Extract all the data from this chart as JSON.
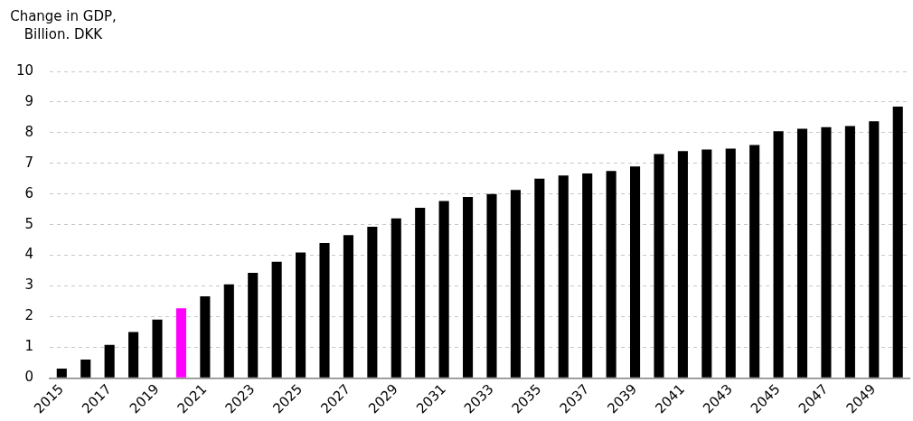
{
  "chart_data": {
    "type": "bar",
    "ylabel": "Change in GDP, Billion. DKK",
    "categories": [
      "2015",
      null,
      "2017",
      null,
      "2019",
      null,
      "2021",
      null,
      "2023",
      null,
      "2025",
      null,
      "2027",
      null,
      "2029",
      null,
      "2031",
      null,
      "2033",
      null,
      "2035",
      null,
      "2037",
      null,
      "2039",
      null,
      "2041",
      null,
      "2043",
      null,
      "2045",
      null,
      "2047",
      null,
      "2049",
      null
    ],
    "values": [
      0.3,
      0.6,
      1.08,
      1.5,
      1.9,
      2.27,
      2.66,
      3.05,
      3.43,
      3.79,
      4.09,
      4.4,
      4.66,
      4.93,
      5.2,
      5.55,
      5.77,
      5.9,
      6.0,
      6.13,
      6.5,
      6.6,
      6.67,
      6.75,
      6.9,
      7.3,
      7.4,
      7.45,
      7.48,
      7.6,
      8.05,
      8.13,
      8.18,
      8.22,
      8.37,
      8.85
    ],
    "colors": [
      "#000000",
      "#000000",
      "#000000",
      "#000000",
      "#000000",
      "#ff00ff",
      "#000000",
      "#000000",
      "#000000",
      "#000000",
      "#000000",
      "#000000",
      "#000000",
      "#000000",
      "#000000",
      "#000000",
      "#000000",
      "#000000",
      "#000000",
      "#000000",
      "#000000",
      "#000000",
      "#000000",
      "#000000",
      "#000000",
      "#000000",
      "#000000",
      "#000000",
      "#000000",
      "#000000",
      "#000000",
      "#000000",
      "#000000",
      "#000000",
      "#000000",
      "#000000"
    ],
    "ylim": [
      0,
      10
    ],
    "yticks": [
      0,
      1,
      2,
      3,
      4,
      5,
      6,
      7,
      8,
      9,
      10
    ],
    "grid": "y",
    "legend": false
  }
}
